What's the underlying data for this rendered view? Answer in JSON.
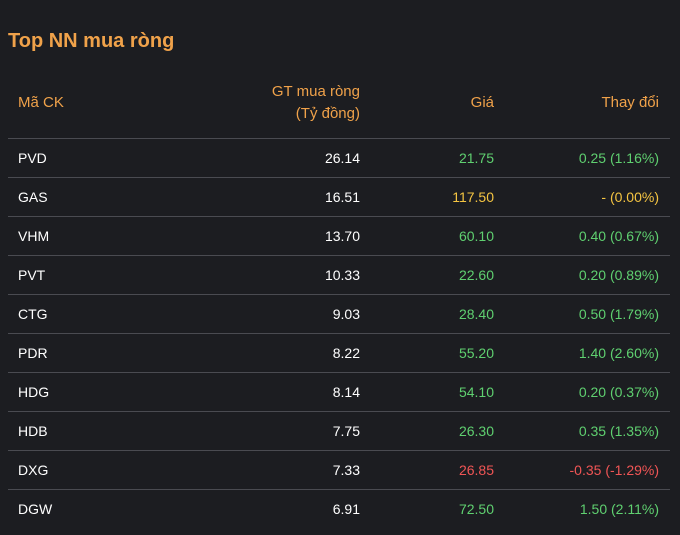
{
  "title": "Top NN mua ròng",
  "columns": {
    "symbol": "Mã CK",
    "value_line1": "GT mua ròng",
    "value_line2": "(Tỷ đồng)",
    "price": "Giá",
    "change": "Thay đổi"
  },
  "colors": {
    "up": "#5fd070",
    "ref": "#f5c542",
    "down": "#f05555",
    "accent": "#f0a24a"
  },
  "rows": [
    {
      "symbol": "PVD",
      "value": "26.14",
      "price": "21.75",
      "change": "0.25 (1.16%)",
      "trend": "up"
    },
    {
      "symbol": "GAS",
      "value": "16.51",
      "price": "117.50",
      "change": "- (0.00%)",
      "trend": "ref"
    },
    {
      "symbol": "VHM",
      "value": "13.70",
      "price": "60.10",
      "change": "0.40 (0.67%)",
      "trend": "up"
    },
    {
      "symbol": "PVT",
      "value": "10.33",
      "price": "22.60",
      "change": "0.20 (0.89%)",
      "trend": "up"
    },
    {
      "symbol": "CTG",
      "value": "9.03",
      "price": "28.40",
      "change": "0.50 (1.79%)",
      "trend": "up"
    },
    {
      "symbol": "PDR",
      "value": "8.22",
      "price": "55.20",
      "change": "1.40 (2.60%)",
      "trend": "up"
    },
    {
      "symbol": "HDG",
      "value": "8.14",
      "price": "54.10",
      "change": "0.20 (0.37%)",
      "trend": "up"
    },
    {
      "symbol": "HDB",
      "value": "7.75",
      "price": "26.30",
      "change": "0.35 (1.35%)",
      "trend": "up"
    },
    {
      "symbol": "DXG",
      "value": "7.33",
      "price": "26.85",
      "change": "-0.35 (-1.29%)",
      "trend": "down"
    },
    {
      "symbol": "DGW",
      "value": "6.91",
      "price": "72.50",
      "change": "1.50 (2.11%)",
      "trend": "up"
    }
  ]
}
